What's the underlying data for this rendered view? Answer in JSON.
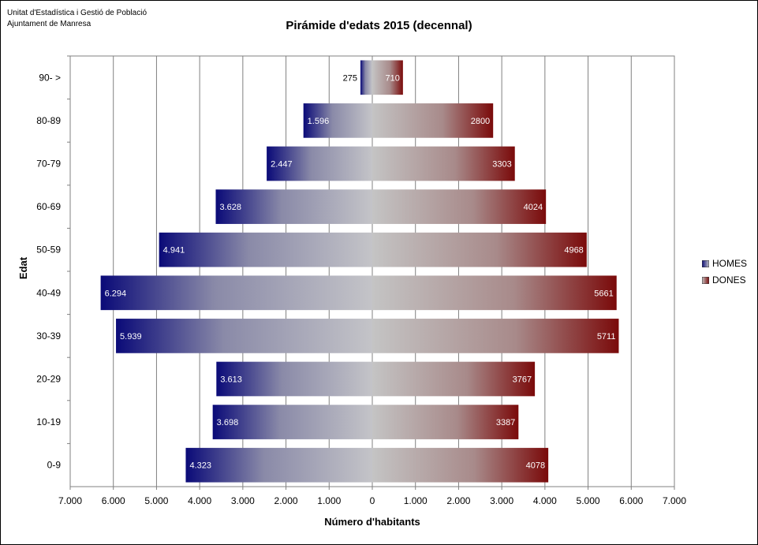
{
  "source": {
    "line1": "Unitat d'Estadística i Gestió de Població",
    "line2": "Ajuntament de Manresa"
  },
  "chart_data": {
    "type": "bar",
    "orientation": "horizontal",
    "title": "Pirámide d'edats 2015 (decennal)",
    "xlabel": "Número d'habitants",
    "ylabel": "Edat",
    "xlim": [
      -7000,
      7000
    ],
    "x_ticks": [
      "7.000",
      "6.000",
      "5.000",
      "4.000",
      "3.000",
      "2.000",
      "1.000",
      "0",
      "1.000",
      "2.000",
      "3.000",
      "4.000",
      "5.000",
      "6.000",
      "7.000"
    ],
    "categories": [
      "90- >",
      "80-89",
      "70-79",
      "60-69",
      "50-59",
      "40-49",
      "30-39",
      "20-29",
      "10-19",
      "0-9"
    ],
    "series": [
      {
        "name": "HOMES",
        "color": "#0a0a78",
        "values": [
          275,
          1596,
          2447,
          3628,
          4941,
          6294,
          5939,
          3613,
          3698,
          4323
        ],
        "labels": [
          "275",
          "1.596",
          "2.447",
          "3.628",
          "4.941",
          "6.294",
          "5.939",
          "3.613",
          "3.698",
          "4.323"
        ]
      },
      {
        "name": "DONES",
        "color": "#7a0a0a",
        "values": [
          710,
          2800,
          3303,
          4024,
          4968,
          5661,
          5711,
          3767,
          3387,
          4078
        ],
        "labels": [
          "710",
          "2800",
          "3303",
          "4024",
          "4968",
          "5661",
          "5711",
          "3767",
          "3387",
          "4078"
        ]
      }
    ],
    "grid": true,
    "legend_position": "right"
  }
}
